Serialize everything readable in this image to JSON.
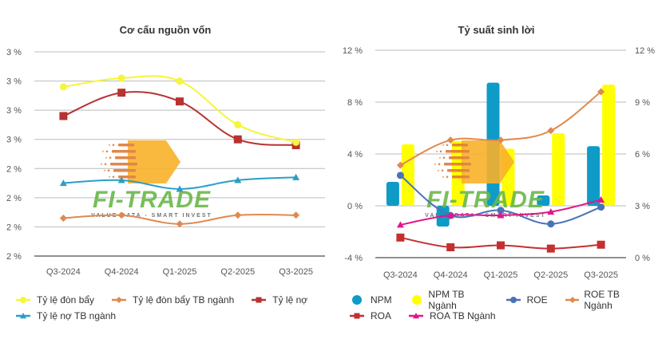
{
  "watermark": {
    "brand": "FI-TRADE",
    "tagline": "VALUE DATA - SMART INVEST"
  },
  "chart_data": [
    {
      "type": "line",
      "title": "Cơ cấu nguồn vốn",
      "categories": [
        "Q3-2024",
        "Q4-2024",
        "Q1-2025",
        "Q2-2025",
        "Q3-2025"
      ],
      "xlabel": "",
      "ylabel": "",
      "ylim": [
        2.1,
        2.8
      ],
      "yticks": [
        2.8,
        2.7,
        2.6,
        2.5,
        2.4,
        2.3,
        2.2,
        2.1
      ],
      "ytick_labels": [
        "3 %",
        "3 %",
        "3 %",
        "3 %",
        "2 %",
        "2 %",
        "2 %",
        "2 %"
      ],
      "grid": true,
      "legend_position": "bottom-left",
      "series": [
        {
          "name": "Tỷ lệ đòn bẩy",
          "color": "#f5f53a",
          "marker": "circle",
          "values": [
            2.68,
            2.71,
            2.7,
            2.55,
            2.49
          ]
        },
        {
          "name": "Tỷ lệ đòn bẩy TB ngành",
          "color": "#e0894f",
          "marker": "diamond",
          "values": [
            2.23,
            2.24,
            2.21,
            2.24,
            2.24
          ]
        },
        {
          "name": "Tỷ lệ nợ",
          "color": "#b83232",
          "marker": "square",
          "values": [
            2.58,
            2.66,
            2.63,
            2.5,
            2.48
          ]
        },
        {
          "name": "Tỷ lệ nợ TB ngành",
          "color": "#2a9fc4",
          "marker": "triangle",
          "values": [
            2.35,
            2.36,
            2.33,
            2.36,
            2.37
          ]
        }
      ]
    },
    {
      "type": "bar",
      "title": "Tỷ suất sinh lời",
      "categories": [
        "Q3-2024",
        "Q4-2024",
        "Q1-2025",
        "Q2-2025",
        "Q3-2025"
      ],
      "xlabel": "",
      "ylabel": "",
      "ylim": [
        -4,
        12
      ],
      "yticks": [
        12,
        8,
        4,
        0,
        -4
      ],
      "ytick_labels": [
        "12 %",
        "8 %",
        "4 %",
        "0 %",
        "-4 %"
      ],
      "y2lim": [
        0,
        12
      ],
      "y2ticks": [
        12,
        9,
        6,
        3,
        0
      ],
      "y2tick_labels": [
        "12 %",
        "9 %",
        "6 %",
        "3 %",
        "0 %"
      ],
      "grid": true,
      "legend_position": "bottom-left",
      "series": [
        {
          "name": "NPM",
          "kind": "bar",
          "axis": "left",
          "color": "#0e9bc7",
          "marker": "circle",
          "values": [
            1.85,
            -1.6,
            9.5,
            0.8,
            4.6
          ]
        },
        {
          "name": "NPM TB Ngành",
          "kind": "bar",
          "axis": "left",
          "color": "#ffff00",
          "marker": "circle",
          "values": [
            4.75,
            5.0,
            4.4,
            5.6,
            9.35
          ]
        },
        {
          "name": "ROE",
          "kind": "line",
          "axis": "left",
          "color": "#4a72b8",
          "marker": "circle",
          "values": [
            2.35,
            -0.75,
            -0.35,
            -1.4,
            -0.1
          ]
        },
        {
          "name": "ROE TB Ngành",
          "kind": "line",
          "axis": "right",
          "color": "#e0894f",
          "marker": "diamond",
          "values": [
            5.35,
            6.8,
            6.8,
            7.35,
            9.6
          ]
        },
        {
          "name": "ROA",
          "kind": "line",
          "axis": "left",
          "color": "#c43030",
          "marker": "square",
          "values": [
            -2.45,
            -3.2,
            -3.05,
            -3.3,
            -3.0
          ]
        },
        {
          "name": "ROA TB Ngành",
          "kind": "line",
          "axis": "right",
          "color": "#e0178a",
          "marker": "triangle",
          "values": [
            1.9,
            2.45,
            2.45,
            2.65,
            3.35
          ]
        }
      ]
    }
  ]
}
